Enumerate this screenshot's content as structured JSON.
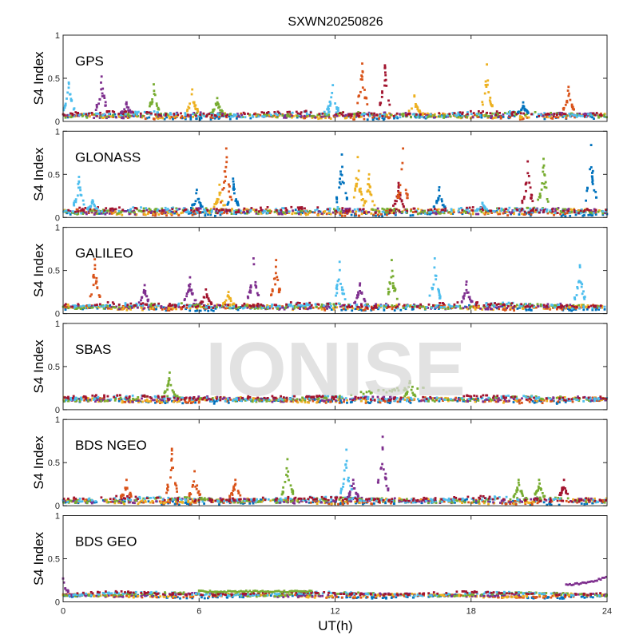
{
  "chart_data": {
    "type": "scatter",
    "title": "SXWN20250826",
    "xlabel": "UT(h)",
    "ylabel": "S4 Index",
    "xlim": [
      0,
      24
    ],
    "ylim": [
      0,
      1
    ],
    "xticks": [
      "0",
      "6",
      "12",
      "18",
      "24"
    ],
    "yticks": [
      "0",
      "0.5",
      "1"
    ],
    "watermark": "IONISE",
    "colors": [
      "#0072BD",
      "#D95319",
      "#EDB120",
      "#7E2F8E",
      "#77AC30",
      "#4DBEEE",
      "#A2142F"
    ],
    "panels": [
      {
        "name": "GPS",
        "baseline": 0.07,
        "noise": 0.04,
        "spikes": [
          [
            0.25,
            0.45,
            5
          ],
          [
            1.7,
            0.52,
            3
          ],
          [
            2.8,
            0.22,
            3
          ],
          [
            4.0,
            0.43,
            4
          ],
          [
            5.7,
            0.37,
            2
          ],
          [
            6.8,
            0.27,
            4
          ],
          [
            11.9,
            0.42,
            5
          ],
          [
            13.2,
            0.67,
            1
          ],
          [
            14.2,
            0.65,
            6
          ],
          [
            15.5,
            0.3,
            2
          ],
          [
            18.7,
            0.66,
            2
          ],
          [
            20.3,
            0.22,
            0
          ],
          [
            22.3,
            0.4,
            1
          ]
        ]
      },
      {
        "name": "GLONASS",
        "baseline": 0.07,
        "noise": 0.05,
        "spikes": [
          [
            0.7,
            0.47,
            5
          ],
          [
            1.3,
            0.2,
            5
          ],
          [
            5.9,
            0.32,
            0
          ],
          [
            6.9,
            0.38,
            2
          ],
          [
            7.2,
            0.8,
            1
          ],
          [
            7.5,
            0.45,
            0
          ],
          [
            12.3,
            0.73,
            0
          ],
          [
            13.0,
            0.7,
            2
          ],
          [
            13.5,
            0.5,
            2
          ],
          [
            14.8,
            0.4,
            6
          ],
          [
            15.0,
            0.8,
            1
          ],
          [
            16.6,
            0.35,
            0
          ],
          [
            18.5,
            0.17,
            5
          ],
          [
            20.5,
            0.65,
            6
          ],
          [
            21.2,
            0.68,
            4
          ],
          [
            23.3,
            0.84,
            0
          ]
        ]
      },
      {
        "name": "GALILEO",
        "baseline": 0.08,
        "noise": 0.04,
        "spikes": [
          [
            1.4,
            0.63,
            1
          ],
          [
            3.6,
            0.33,
            3
          ],
          [
            5.6,
            0.42,
            3
          ],
          [
            6.3,
            0.28,
            6
          ],
          [
            7.3,
            0.25,
            2
          ],
          [
            8.4,
            0.64,
            3
          ],
          [
            9.4,
            0.62,
            1
          ],
          [
            12.2,
            0.6,
            5
          ],
          [
            13.1,
            0.35,
            3
          ],
          [
            14.5,
            0.62,
            4
          ],
          [
            16.4,
            0.64,
            5
          ],
          [
            17.8,
            0.37,
            3
          ],
          [
            22.8,
            0.56,
            5
          ]
        ]
      },
      {
        "name": "SBAS",
        "baseline": 0.12,
        "noise": 0.04,
        "spikes": [
          [
            4.7,
            0.43,
            4
          ],
          [
            15.3,
            0.33,
            4
          ]
        ]
      },
      {
        "name": "BDS NGEO",
        "baseline": 0.06,
        "noise": 0.04,
        "spikes": [
          [
            2.8,
            0.3,
            1
          ],
          [
            4.8,
            0.66,
            1
          ],
          [
            5.8,
            0.4,
            1
          ],
          [
            7.6,
            0.3,
            1
          ],
          [
            9.9,
            0.54,
            4
          ],
          [
            12.5,
            0.65,
            5
          ],
          [
            12.8,
            0.3,
            3
          ],
          [
            14.1,
            0.8,
            3
          ],
          [
            20.1,
            0.3,
            4
          ],
          [
            21.0,
            0.3,
            4
          ],
          [
            22.1,
            0.3,
            6
          ]
        ]
      },
      {
        "name": "BDS GEO",
        "baseline": 0.08,
        "noise": 0.02,
        "spikes": [
          [
            0.0,
            0.27,
            3
          ]
        ],
        "segments": [
          [
            6.0,
            11.0,
            0.12,
            0.12,
            4
          ],
          [
            22.2,
            24.0,
            0.2,
            0.29,
            3
          ]
        ]
      }
    ]
  }
}
